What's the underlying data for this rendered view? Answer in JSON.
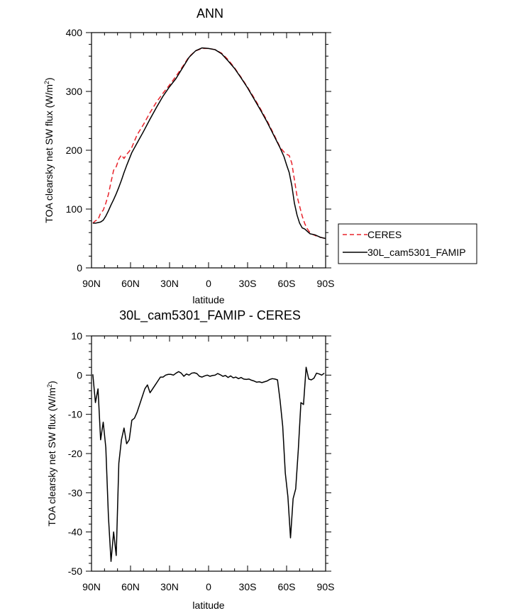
{
  "chart_data": [
    {
      "type": "line",
      "title": "ANN",
      "xlabel": "latitude",
      "ylabel": "TOA clearsky net SW flux (W/m",
      "ylabel_sup": "2",
      "ylabel_tail": ")",
      "xlim": [
        90,
        -90
      ],
      "ylim": [
        0,
        400
      ],
      "xticks": [
        90,
        60,
        30,
        0,
        -30,
        -60,
        -90
      ],
      "xtick_labels": [
        "90N",
        "60N",
        "30N",
        "0",
        "30S",
        "60S",
        "90S"
      ],
      "yticks": [
        0,
        100,
        200,
        300,
        400
      ],
      "ytick_labels": [
        "0",
        "100",
        "200",
        "300",
        "400"
      ],
      "legend": {
        "placement": "right",
        "entries": [
          "CERES",
          "30L_cam5301_FAMIP"
        ]
      },
      "series": [
        {
          "name": "CERES",
          "color": "#e8232b",
          "dash": "dashed",
          "x": [
            89,
            87,
            85,
            83,
            81,
            79,
            77,
            75,
            73,
            71,
            69,
            67,
            65,
            63,
            61,
            59,
            55,
            50,
            45,
            40,
            35,
            30,
            25,
            20,
            15,
            10,
            5,
            0,
            -5,
            -10,
            -15,
            -20,
            -25,
            -30,
            -35,
            -40,
            -45,
            -50,
            -55,
            -58,
            -60,
            -62,
            -64,
            -66,
            -68,
            -70,
            -72,
            -74,
            -76,
            -78,
            -80,
            -82,
            -84,
            -86,
            -88,
            -90
          ],
          "y": [
            76,
            80,
            82,
            93,
            98,
            110,
            125,
            146,
            166,
            172,
            185,
            192,
            186,
            193,
            198,
            205,
            226,
            244,
            264,
            282,
            297,
            311,
            326,
            342,
            359,
            369,
            373,
            373,
            371,
            365,
            354,
            340,
            324,
            307,
            289,
            270,
            250,
            228,
            205,
            197,
            193,
            191,
            178,
            150,
            122,
            105,
            88,
            75,
            66,
            60,
            57,
            55,
            53,
            52,
            51,
            49
          ]
        },
        {
          "name": "30L_cam5301_FAMIP",
          "color": "#000000",
          "dash": "solid",
          "x": [
            89,
            87,
            85,
            83,
            81,
            79,
            77,
            75,
            73,
            71,
            69,
            67,
            65,
            63,
            61,
            59,
            55,
            50,
            45,
            40,
            35,
            30,
            25,
            20,
            15,
            10,
            5,
            0,
            -5,
            -10,
            -15,
            -20,
            -25,
            -30,
            -35,
            -40,
            -45,
            -50,
            -55,
            -58,
            -60,
            -62,
            -64,
            -66,
            -68,
            -70,
            -72,
            -74,
            -76,
            -78,
            -80,
            -82,
            -84,
            -86,
            -88,
            -90
          ],
          "y": [
            76,
            76,
            77,
            78,
            81,
            88,
            97,
            107,
            116,
            126,
            137,
            149,
            162,
            174,
            185,
            196,
            212,
            232,
            253,
            273,
            292,
            308,
            322,
            340,
            358,
            369,
            374,
            373,
            371,
            364,
            352,
            339,
            323,
            306,
            287,
            268,
            248,
            226,
            204,
            189,
            175,
            162,
            140,
            110,
            90,
            76,
            68,
            66,
            62,
            58,
            57,
            56,
            54,
            52,
            51,
            50
          ]
        }
      ]
    },
    {
      "type": "line",
      "title": "30L_cam5301_FAMIP - CERES",
      "xlabel": "latitude",
      "ylabel": "TOA clearsky net SW flux (W/m",
      "ylabel_sup": "2",
      "ylabel_tail": ")",
      "xlim": [
        90,
        -90
      ],
      "ylim": [
        -50,
        10
      ],
      "xticks": [
        90,
        60,
        30,
        0,
        -30,
        -60,
        -90
      ],
      "xtick_labels": [
        "90N",
        "60N",
        "30N",
        "0",
        "30S",
        "60S",
        "90S"
      ],
      "yticks": [
        -50,
        -40,
        -30,
        -20,
        -10,
        0,
        10
      ],
      "ytick_labels": [
        "-50",
        "-40",
        "-30",
        "-20",
        "-10",
        "0",
        "10"
      ],
      "series": [
        {
          "color": "#000000",
          "dash": "solid",
          "x": [
            89,
            87,
            85,
            83,
            81,
            79,
            77,
            75,
            73,
            71,
            69,
            67,
            65,
            63,
            61,
            59,
            57,
            55,
            53,
            51,
            49,
            47,
            45,
            43,
            41,
            39,
            37,
            35,
            33,
            31,
            29,
            27,
            25,
            23,
            21,
            19,
            17,
            15,
            13,
            11,
            9,
            7,
            5,
            3,
            1,
            -1,
            -3,
            -5,
            -7,
            -9,
            -11,
            -13,
            -15,
            -17,
            -19,
            -21,
            -23,
            -25,
            -27,
            -29,
            -31,
            -33,
            -35,
            -37,
            -39,
            -41,
            -43,
            -45,
            -47,
            -49,
            -51,
            -53,
            -55,
            -57,
            -59,
            -61,
            -63,
            -65,
            -67,
            -69,
            -71,
            -73,
            -75,
            -77,
            -79,
            -81,
            -83,
            -85,
            -87,
            -89
          ],
          "y": [
            0.2,
            -7.0,
            -3.5,
            -16.5,
            -12.0,
            -18.5,
            -36.0,
            -47.5,
            -40.0,
            -46.0,
            -22.5,
            -16.5,
            -13.5,
            -17.5,
            -16.5,
            -11.5,
            -11.0,
            -9.5,
            -7.5,
            -5.5,
            -3.5,
            -2.5,
            -4.5,
            -3.5,
            -2.5,
            -1.5,
            -0.5,
            -0.5,
            0.0,
            0.2,
            0.2,
            0.0,
            0.5,
            0.9,
            0.5,
            -0.3,
            0.3,
            0.0,
            0.5,
            0.6,
            0.4,
            -0.3,
            -0.5,
            -0.2,
            0.0,
            -0.3,
            -0.1,
            0.0,
            0.4,
            0.1,
            -0.3,
            -0.1,
            -0.6,
            -0.2,
            -0.7,
            -0.5,
            -0.9,
            -0.6,
            -1.0,
            -1.1,
            -1.0,
            -1.3,
            -1.5,
            -1.8,
            -1.7,
            -1.9,
            -1.7,
            -1.5,
            -1.1,
            -0.9,
            -1.0,
            -1.2,
            -6.5,
            -13.0,
            -25.0,
            -31.0,
            -41.5,
            -31.5,
            -29.0,
            -19.0,
            -7.0,
            -7.5,
            2.0,
            -1.0,
            -1.2,
            -0.8,
            0.5,
            0.3,
            0.0,
            0.5
          ]
        }
      ]
    }
  ]
}
